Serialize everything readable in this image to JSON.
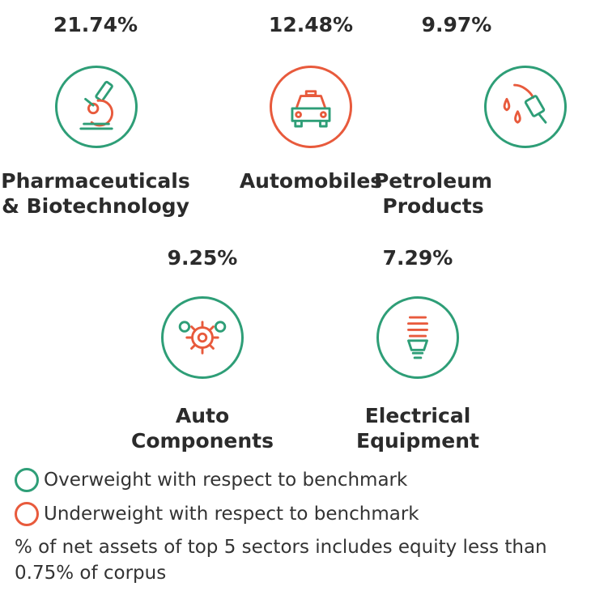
{
  "colors": {
    "overweight": "#2e9e77",
    "underweight": "#e85a3c",
    "text": "#2b2b2b"
  },
  "sectors": [
    {
      "percent": "21.74%",
      "name_line1": "Pharmaceuticals",
      "name_line2": "& Biotechnology",
      "status": "overweight",
      "icon": "microscope-icon"
    },
    {
      "percent": "12.48%",
      "name_line1": "Automobiles",
      "name_line2": "",
      "status": "underweight",
      "icon": "car-icon"
    },
    {
      "percent": "9.97%",
      "name_line1": "Petroleum",
      "name_line2": "Products",
      "status": "overweight",
      "icon": "fuel-nozzle-icon"
    },
    {
      "percent": "9.25%",
      "name_line1": "Auto",
      "name_line2": "Components",
      "status": "overweight",
      "icon": "gears-icon"
    },
    {
      "percent": "7.29%",
      "name_line1": "Electrical",
      "name_line2": "Equipment",
      "status": "overweight",
      "icon": "bulb-icon"
    }
  ],
  "legend": {
    "overweight_label": "Overweight with respect to benchmark",
    "underweight_label": "Underweight with respect to benchmark"
  },
  "note": "% of net assets of top 5 sectors includes equity less than 0.75% of corpus"
}
